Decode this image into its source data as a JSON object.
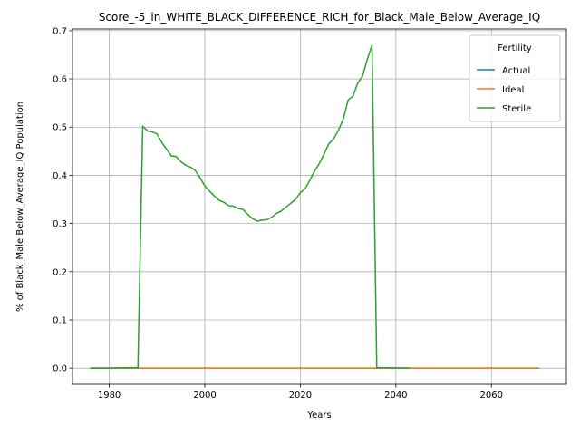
{
  "chart_data": {
    "type": "line",
    "title": "Score_-5_in_WHITE_BLACK_DIFFERENCE_RICH_for_Black_Male_Below_Average_IQ",
    "xlabel": "Years",
    "ylabel": "% of Black_Male Below_Average_IQ Population",
    "xlim": [
      1972.3,
      2075.7
    ],
    "ylim": [
      -0.0335,
      0.7035
    ],
    "x_ticks": [
      1980,
      2000,
      2020,
      2040,
      2060
    ],
    "x_tick_labels": [
      "1980",
      "2000",
      "2020",
      "2040",
      "2060"
    ],
    "y_ticks": [
      0.0,
      0.1,
      0.2,
      0.3,
      0.4,
      0.5,
      0.6,
      0.7
    ],
    "y_tick_labels": [
      "0.0",
      "0.1",
      "0.2",
      "0.3",
      "0.4",
      "0.5",
      "0.6",
      "0.7"
    ],
    "grid": true,
    "legend": {
      "title": "Fertility",
      "position": "top-right"
    },
    "series": [
      {
        "name": "Actual",
        "color": "#1f77b4",
        "x": [
          1976,
          2070
        ],
        "y": [
          0.0,
          0.0
        ]
      },
      {
        "name": "Ideal",
        "color": "#ff7f0e",
        "x": [
          1976,
          2070
        ],
        "y": [
          0.0,
          0.0
        ]
      },
      {
        "name": "Sterile",
        "color": "#2ca02c",
        "x": [
          1976,
          1980,
          1985,
          1986,
          1987,
          1988,
          1989,
          1990,
          1991,
          1992,
          1993,
          1994,
          1995,
          1996,
          1997,
          1998,
          1999,
          2000,
          2001,
          2002,
          2003,
          2004,
          2005,
          2006,
          2007,
          2008,
          2009,
          2010,
          2011,
          2012,
          2013,
          2014,
          2015,
          2016,
          2017,
          2018,
          2019,
          2020,
          2021,
          2022,
          2023,
          2024,
          2025,
          2026,
          2027,
          2028,
          2029,
          2030,
          2031,
          2032,
          2033,
          2034,
          2035,
          2036,
          2043
        ],
        "y": [
          0.0,
          0.0,
          0.001,
          0.001,
          0.502,
          0.492,
          0.49,
          0.486,
          0.468,
          0.454,
          0.44,
          0.439,
          0.428,
          0.421,
          0.417,
          0.41,
          0.395,
          0.378,
          0.367,
          0.357,
          0.348,
          0.344,
          0.337,
          0.336,
          0.331,
          0.329,
          0.319,
          0.31,
          0.305,
          0.307,
          0.308,
          0.313,
          0.321,
          0.326,
          0.334,
          0.342,
          0.35,
          0.364,
          0.372,
          0.39,
          0.409,
          0.425,
          0.445,
          0.466,
          0.476,
          0.494,
          0.517,
          0.556,
          0.564,
          0.591,
          0.605,
          0.64,
          0.67,
          0.001,
          0.0
        ]
      }
    ]
  }
}
